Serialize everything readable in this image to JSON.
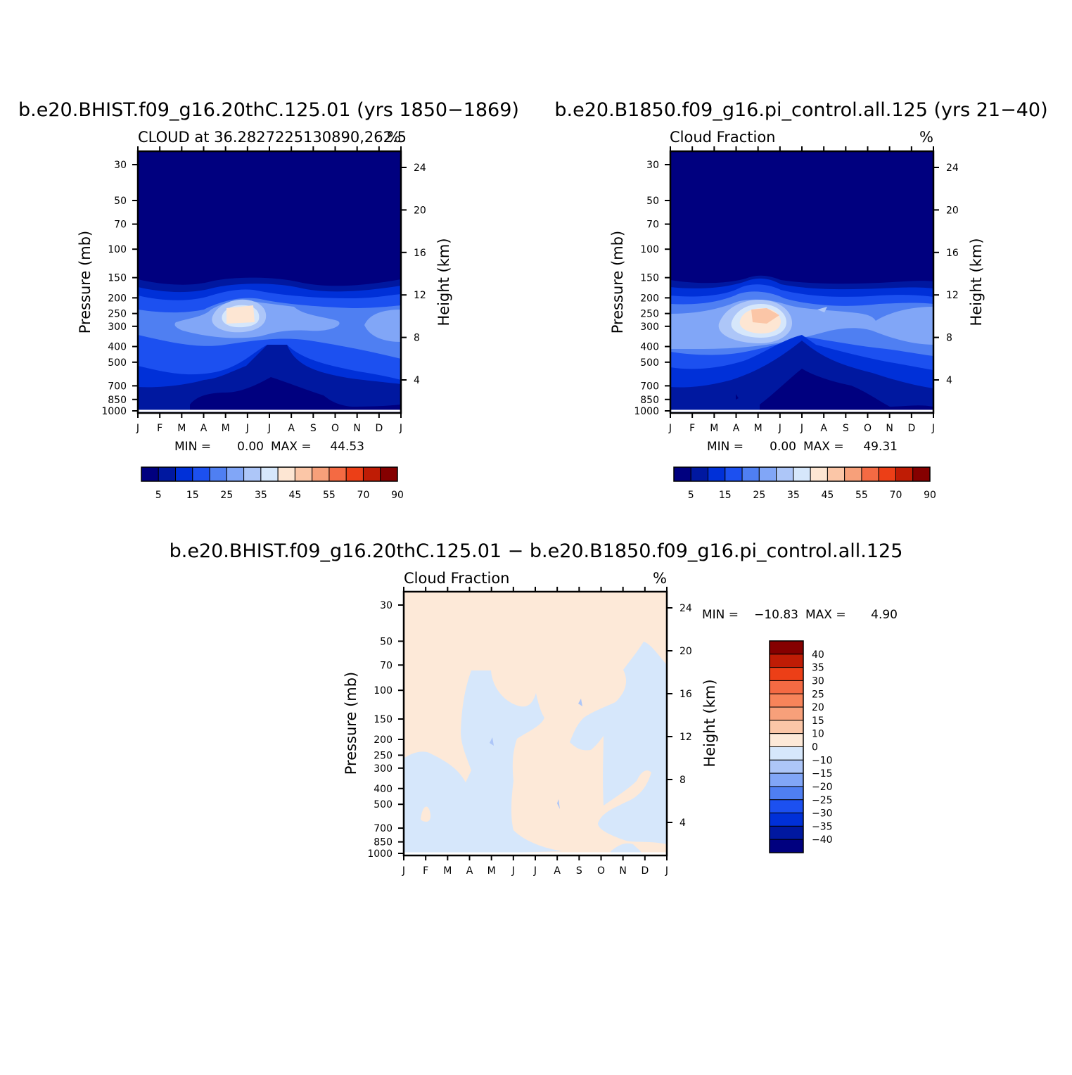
{
  "chart_data": [
    {
      "type": "contour",
      "title": "b.e20.BHIST.f09_g16.20thC.125.01 (yrs 1850−1869)",
      "subtitle_left": "CLOUD at 36.2827225130890,262.5",
      "subtitle_right": "%",
      "ylabel_left": "Pressure (mb)",
      "ylabel_right": "Height (km)",
      "x_ticks": [
        "J",
        "F",
        "M",
        "A",
        "M",
        "J",
        "J",
        "A",
        "S",
        "O",
        "N",
        "D",
        "J"
      ],
      "pressure_ticks": [
        "30",
        "50",
        "70",
        "100",
        "150",
        "200",
        "250",
        "300",
        "400",
        "500",
        "700",
        "850",
        "1000"
      ],
      "height_ticks": [
        "24",
        "20",
        "16",
        "12",
        "8",
        "4"
      ],
      "min_label": "MIN =",
      "min_value": "0.00",
      "max_label": "MAX =",
      "max_value": "44.53",
      "min": 0.0,
      "max": 44.53,
      "colorbar_labels": [
        "5",
        "15",
        "25",
        "35",
        "45",
        "55",
        "70",
        "90"
      ],
      "bands_approx_pct": [
        {
          "level": 0,
          "upper_mb": 30,
          "value": "0-5"
        },
        {
          "level": 1,
          "upper_mb": 150,
          "value": "5-10"
        },
        {
          "level": 5,
          "upper_mb": 250,
          "value": "25-30"
        },
        {
          "level": 8,
          "upper_mb": 250,
          "value": "40-45",
          "months": "May-Jun"
        }
      ]
    },
    {
      "type": "contour",
      "title": "b.e20.B1850.f09_g16.pi_control.all.125 (yrs 21−40)",
      "subtitle_left": "Cloud Fraction",
      "subtitle_right": "%",
      "ylabel_left": "Pressure (mb)",
      "ylabel_right": "Height (km)",
      "x_ticks": [
        "J",
        "F",
        "M",
        "A",
        "M",
        "J",
        "J",
        "A",
        "S",
        "O",
        "N",
        "D",
        "J"
      ],
      "pressure_ticks": [
        "30",
        "50",
        "70",
        "100",
        "150",
        "200",
        "250",
        "300",
        "400",
        "500",
        "700",
        "850",
        "1000"
      ],
      "height_ticks": [
        "24",
        "20",
        "16",
        "12",
        "8",
        "4"
      ],
      "min_label": "MIN =",
      "min_value": "0.00",
      "max_label": "MAX =",
      "max_value": "49.31",
      "min": 0.0,
      "max": 49.31,
      "colorbar_labels": [
        "5",
        "15",
        "25",
        "35",
        "45",
        "55",
        "70",
        "90"
      ]
    },
    {
      "type": "contour",
      "title": "b.e20.BHIST.f09_g16.20thC.125.01 − b.e20.B1850.f09_g16.pi_control.all.125",
      "subtitle_left": "Cloud Fraction",
      "subtitle_right": "%",
      "ylabel_left": "Pressure (mb)",
      "ylabel_right": "Height (km)",
      "x_ticks": [
        "J",
        "F",
        "M",
        "A",
        "M",
        "J",
        "J",
        "A",
        "S",
        "O",
        "N",
        "D",
        "J"
      ],
      "pressure_ticks": [
        "30",
        "50",
        "70",
        "100",
        "150",
        "200",
        "250",
        "300",
        "400",
        "500",
        "700",
        "850",
        "1000"
      ],
      "height_ticks": [
        "24",
        "20",
        "16",
        "12",
        "8",
        "4"
      ],
      "min_label": "MIN =",
      "min_value": "−10.83",
      "max_label": "MAX =",
      "max_value": "4.90",
      "min": -10.83,
      "max": 4.9,
      "colorbar_labels": [
        "40",
        "35",
        "30",
        "25",
        "20",
        "15",
        "10",
        "0",
        "−10",
        "−15",
        "−20",
        "−25",
        "−30",
        "−35",
        "−40"
      ]
    }
  ],
  "colors": {
    "seq": [
      "#00007f",
      "#0018a0",
      "#0030d8",
      "#1c50f0",
      "#4f7ff2",
      "#81a6f7",
      "#adc6f8",
      "#d6e7fb",
      "#fde6d3",
      "#fbc6a7",
      "#f7a07a",
      "#f46a43",
      "#ec3f17",
      "#bf1c05",
      "#850000"
    ],
    "diff": [
      "#850000",
      "#bf1c05",
      "#ec3f17",
      "#f46a43",
      "#f7845a",
      "#f7a07a",
      "#fbc6a7",
      "#fde9d8",
      "#d6e7fb",
      "#adc6f8",
      "#81a6f7",
      "#4f7ff2",
      "#1c50f0",
      "#0030d8",
      "#0018a0",
      "#00007f"
    ]
  }
}
